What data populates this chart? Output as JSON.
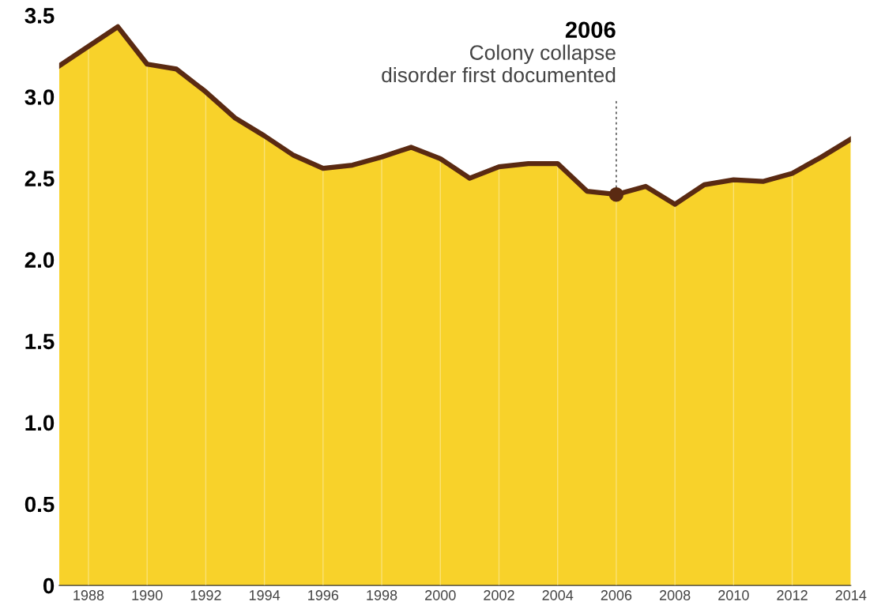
{
  "chart_data": {
    "type": "area",
    "x": [
      1987,
      1988,
      1989,
      1990,
      1991,
      1992,
      1993,
      1994,
      1995,
      1996,
      1997,
      1998,
      1999,
      2000,
      2001,
      2002,
      2003,
      2004,
      2005,
      2006,
      2007,
      2008,
      2009,
      2010,
      2011,
      2012,
      2013,
      2014
    ],
    "series": [
      {
        "color": "#f8d22a",
        "values": [
          3.19,
          3.31,
          3.43,
          3.2,
          3.17,
          3.03,
          2.87,
          2.76,
          2.64,
          2.56,
          2.58,
          2.63,
          2.69,
          2.62,
          2.5,
          2.57,
          2.59,
          2.59,
          2.42,
          2.4,
          2.45,
          2.34,
          2.46,
          2.49,
          2.48,
          2.53,
          2.63,
          2.74
        ]
      },
      {
        "type": "scatter",
        "color": "#5a2a12",
        "x": [
          2006
        ],
        "values": [
          2.4
        ]
      }
    ],
    "annotations": [
      "2006",
      {
        "text": "Colony collapse\ndisorder first documented",
        "x": 2006,
        "y": 2.4
      }
    ],
    "xlim": [
      1987,
      2014
    ],
    "xticks": [
      1988,
      1990,
      1992,
      1994,
      1996,
      1998,
      2000,
      2002,
      2004,
      2006,
      2008,
      2010,
      2012,
      2014
    ],
    "ylim": [
      0,
      3.5
    ],
    "yticks": [
      {
        "value": 0,
        "label": "0"
      },
      0.5,
      {
        "value": 1,
        "label": "1.0"
      },
      1.5,
      {
        "value": 2,
        "label": "2.0"
      },
      2.5,
      {
        "value": 3,
        "label": "3.0"
      },
      3.5
    ],
    "grid": "x"
  }
}
